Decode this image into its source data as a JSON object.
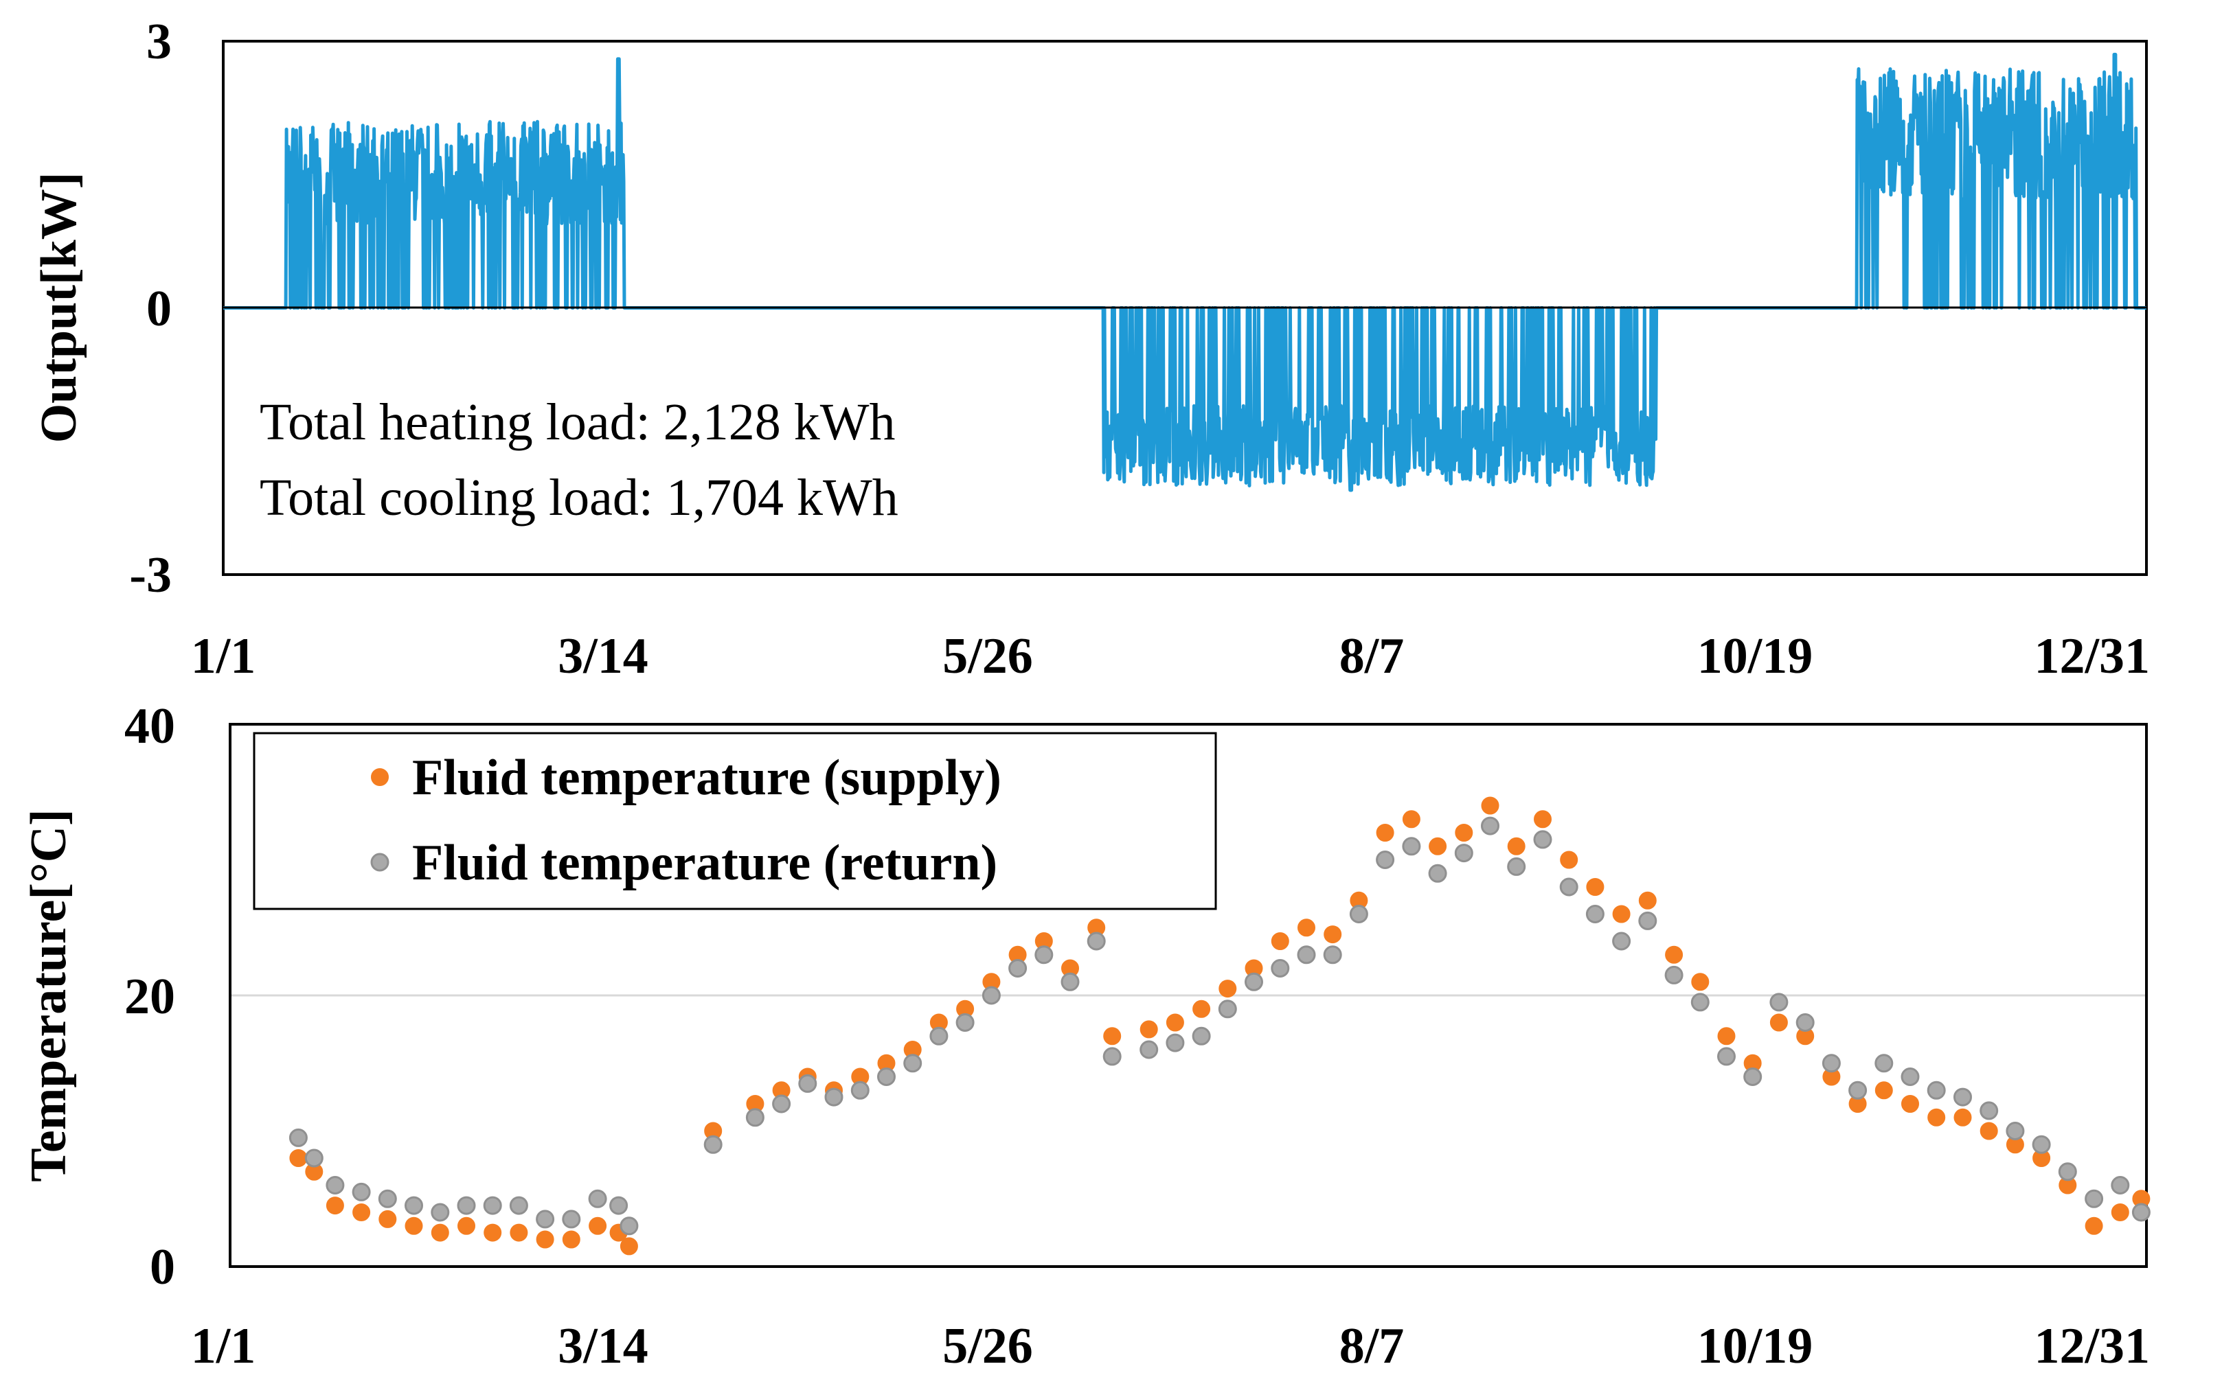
{
  "colors": {
    "output_line": "#1F9AD6",
    "supply_marker": "#F47D20",
    "return_marker": "#A9A9A9",
    "return_marker_edge": "#909090",
    "gridline": "#D9D9D9",
    "axis": "#000000"
  },
  "chart_data": [
    {
      "type": "line",
      "name": "output",
      "title": "",
      "xlabel": "",
      "ylabel": "Output[kW]",
      "xlim": [
        0,
        365
      ],
      "ylim": [
        -3,
        3
      ],
      "x_ticks": [
        0,
        72,
        145,
        218,
        291,
        364
      ],
      "x_tick_labels": [
        "1/1",
        "3/14",
        "5/26",
        "8/7",
        "10/19",
        "12/31"
      ],
      "y_ticks": [
        3,
        0,
        -3
      ],
      "y_tick_labels": [
        "3",
        "0",
        "-3"
      ],
      "zero_line": true,
      "annotations": [
        "Total heating load: 2,128 kWh",
        "Total cooling load: 1,704 kWh"
      ],
      "series": [
        {
          "name": "Output",
          "segments": [
            {
              "mode": "heating",
              "start_day": 12,
              "end_day": 76,
              "low": 0,
              "high": 2.1,
              "peak_day": 75,
              "peak": 2.8
            },
            {
              "mode": "cooling",
              "start_day": 167,
              "end_day": 272,
              "low": -2.0,
              "high": 0,
              "peak_day": 214,
              "peak": -2.05
            },
            {
              "mode": "heating",
              "start_day": 310,
              "end_day": 363,
              "low": 0,
              "high": 2.7,
              "peak_day": 359,
              "peak": 2.85
            }
          ]
        }
      ]
    },
    {
      "type": "scatter",
      "name": "temperature",
      "title": "",
      "xlabel": "",
      "ylabel": "Temperature[°C]",
      "xlim": [
        0,
        365
      ],
      "ylim": [
        0,
        40
      ],
      "x_ticks": [
        0,
        72,
        145,
        218,
        291,
        364
      ],
      "x_tick_labels": [
        "1/1",
        "3/14",
        "5/26",
        "8/7",
        "10/19",
        "12/31"
      ],
      "y_ticks": [
        40,
        20,
        0
      ],
      "y_tick_labels": [
        "40",
        "20",
        "0"
      ],
      "gridlines": [
        20
      ],
      "legend": {
        "placement": "top-left",
        "entries": [
          "Fluid temperature (supply)",
          "Fluid temperature (return)"
        ]
      },
      "series": [
        {
          "name": "Fluid temperature (supply)",
          "x": [
            13,
            16,
            20,
            25,
            30,
            35,
            40,
            45,
            50,
            55,
            60,
            65,
            70,
            74,
            76,
            92,
            100,
            105,
            110,
            115,
            120,
            125,
            130,
            135,
            140,
            145,
            150,
            155,
            160,
            165,
            168,
            175,
            180,
            185,
            190,
            195,
            200,
            205,
            210,
            215,
            220,
            225,
            230,
            235,
            240,
            245,
            250,
            255,
            260,
            265,
            270,
            275,
            280,
            285,
            290,
            295,
            300,
            305,
            310,
            315,
            320,
            325,
            330,
            335,
            340,
            345,
            350,
            355,
            360,
            364
          ],
          "y": [
            8,
            7,
            4.5,
            4,
            3.5,
            3,
            2.5,
            3,
            2.5,
            2.5,
            2,
            2,
            3,
            2.5,
            1.5,
            10,
            12,
            13,
            14,
            13,
            14,
            15,
            16,
            18,
            19,
            21,
            23,
            24,
            22,
            25,
            17,
            17.5,
            18,
            19,
            20.5,
            22,
            24,
            25,
            24.5,
            27,
            32,
            33,
            31,
            32,
            34,
            31,
            33,
            30,
            28,
            26,
            27,
            23,
            21,
            17,
            15,
            18,
            17,
            14,
            12,
            13,
            12,
            11,
            11,
            10,
            9,
            8,
            6,
            3,
            4,
            5
          ]
        },
        {
          "name": "Fluid temperature (return)",
          "x": [
            13,
            16,
            20,
            25,
            30,
            35,
            40,
            45,
            50,
            55,
            60,
            65,
            70,
            74,
            76,
            92,
            100,
            105,
            110,
            115,
            120,
            125,
            130,
            135,
            140,
            145,
            150,
            155,
            160,
            165,
            168,
            175,
            180,
            185,
            190,
            195,
            200,
            205,
            210,
            215,
            220,
            225,
            230,
            235,
            240,
            245,
            250,
            255,
            260,
            265,
            270,
            275,
            280,
            285,
            290,
            295,
            300,
            305,
            310,
            315,
            320,
            325,
            330,
            335,
            340,
            345,
            350,
            355,
            360,
            364
          ],
          "y": [
            9.5,
            8,
            6,
            5.5,
            5,
            4.5,
            4,
            4.5,
            4.5,
            4.5,
            3.5,
            3.5,
            5,
            4.5,
            3,
            9,
            11,
            12,
            13.5,
            12.5,
            13,
            14,
            15,
            17,
            18,
            20,
            22,
            23,
            21,
            24,
            15.5,
            16,
            16.5,
            17,
            19,
            21,
            22,
            23,
            23,
            26,
            30,
            31,
            29,
            30.5,
            32.5,
            29.5,
            31.5,
            28,
            26,
            24,
            25.5,
            21.5,
            19.5,
            15.5,
            14,
            19.5,
            18,
            15,
            13,
            15,
            14,
            13,
            12.5,
            11.5,
            10,
            9,
            7,
            5,
            6,
            4
          ]
        }
      ]
    }
  ]
}
